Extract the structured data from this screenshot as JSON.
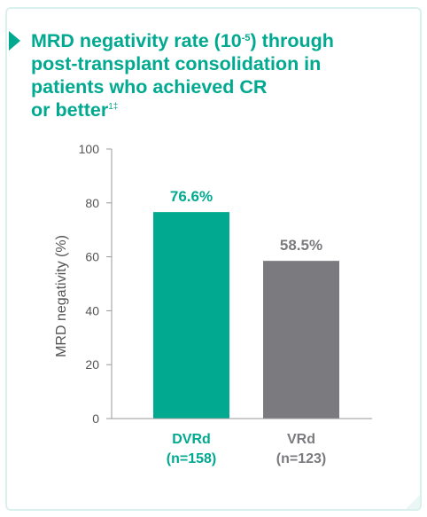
{
  "title": {
    "line1_prefix": "MRD negativity rate (10",
    "exponent": "-5",
    "line1_suffix": ") through",
    "line2": "post-transplant consolidation in",
    "line3": "patients who achieved CR",
    "line4": "or better",
    "footnote_marks": "1‡"
  },
  "chart_data": {
    "type": "bar",
    "categories": [
      "DVRd",
      "VRd"
    ],
    "category_sublabels": [
      "(n=158)",
      "(n=123)"
    ],
    "values": [
      76.6,
      58.5
    ],
    "value_labels": [
      "76.6%",
      "58.5%"
    ],
    "ylabel": "MRD negativity (%)",
    "xlabel": "",
    "ylim": [
      0,
      100
    ],
    "yticks": [
      0,
      20,
      40,
      60,
      80,
      100
    ],
    "bar_colors": [
      "#00a98f",
      "#7b7b7f"
    ],
    "grid": false
  },
  "colors": {
    "accent": "#00a98f",
    "secondary": "#7b7b7f",
    "axis": "#9a9a9a",
    "border": "#d9f1ec"
  }
}
